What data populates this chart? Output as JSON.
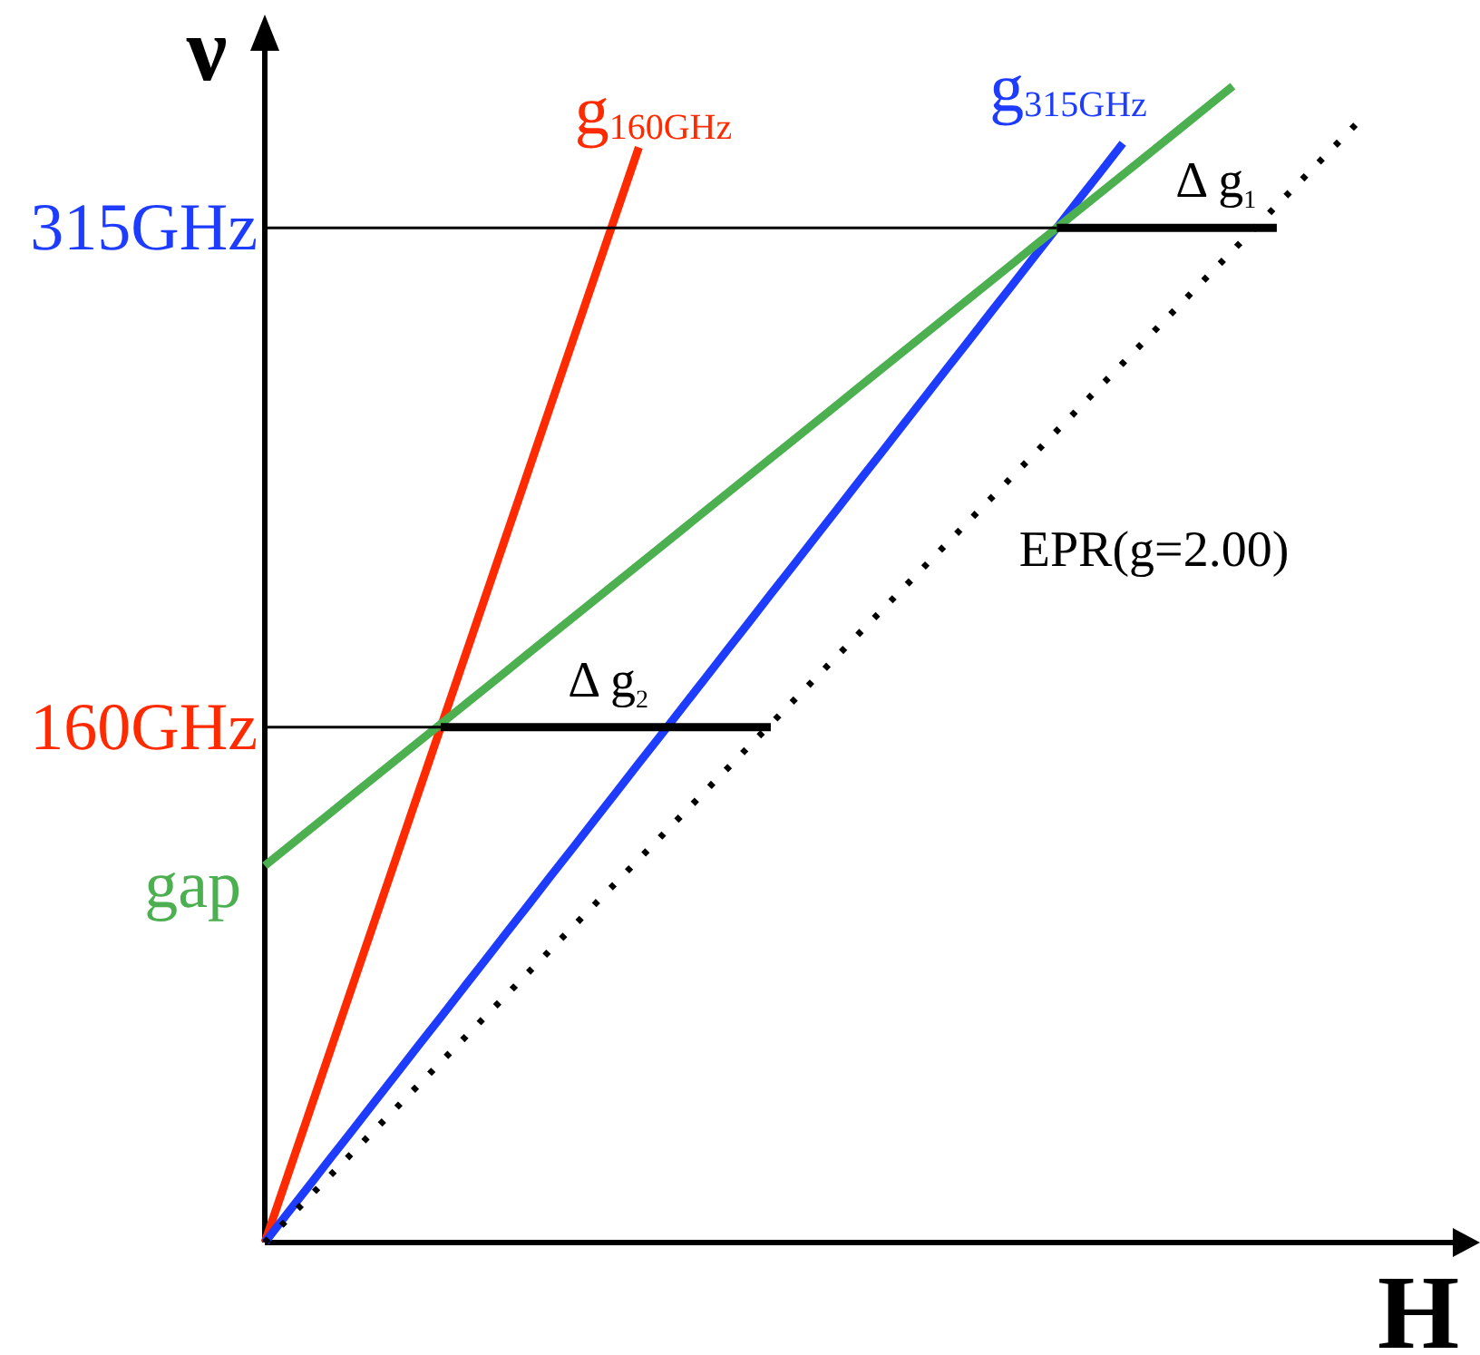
{
  "chart_data": {
    "type": "line",
    "xlabel": "H",
    "ylabel": "ν",
    "categories": [
      null,
      null,
      null,
      null,
      null,
      null,
      null,
      null,
      null,
      null,
      null,
      null,
      null,
      null,
      null,
      null,
      null,
      null,
      null,
      null,
      null,
      null,
      null,
      null,
      null,
      null,
      null,
      null,
      null,
      null,
      null,
      null,
      null,
      null,
      null,
      null,
      null,
      null,
      null,
      null,
      null,
      null,
      null,
      null,
      null,
      null,
      null,
      null,
      null,
      null,
      null,
      null,
      null,
      null,
      null
    ],
    "ylim": [
      0,
      370
    ],
    "yticks": [
      {
        "value": 160,
        "label": "160GHz"
      },
      {
        "value": 315,
        "label": "315GHz"
      }
    ],
    "tick_labels": "y",
    "series": [
      {
        "name": "g$_{160GHz}$",
        "color": "#ff2a00",
        "values": [
          0,
          20,
          40,
          60,
          80,
          100,
          120,
          140,
          160,
          180,
          200,
          220,
          240,
          260,
          280,
          300,
          320,
          340,
          null,
          null,
          null,
          null,
          null,
          null,
          null,
          null,
          null,
          null,
          null,
          null,
          null,
          null,
          null,
          null,
          null,
          null,
          null,
          null,
          null,
          null,
          null,
          null,
          null,
          null,
          null,
          null,
          null,
          null,
          null,
          null,
          null,
          null,
          null,
          null,
          null
        ]
      },
      {
        "name": "g$_{315GHz}$",
        "color": "#1e3cff",
        "values": [
          0,
          8.8,
          17.5,
          26.3,
          35,
          43.8,
          52.5,
          61.3,
          70,
          78.8,
          87.5,
          96.3,
          105,
          113.8,
          122.5,
          131.3,
          140,
          148.8,
          157.5,
          166.3,
          175,
          183.8,
          192.5,
          201.3,
          210,
          218.8,
          227.5,
          236.3,
          245,
          253.8,
          262.5,
          271.3,
          280,
          288.8,
          297.5,
          306.3,
          315,
          323.8,
          332.5,
          341.3,
          null,
          null,
          null,
          null,
          null,
          null,
          null,
          null,
          null,
          null,
          null,
          null,
          null,
          null,
          null
        ]
      },
      {
        "name": "gap",
        "color": "#4caf50",
        "values": [
          117,
          122.5,
          128,
          133.5,
          139,
          144.5,
          150,
          155.5,
          161,
          166.5,
          172,
          177.5,
          183,
          188.5,
          194,
          199.5,
          205,
          210.5,
          216,
          221.5,
          227,
          232.5,
          238,
          243.5,
          249,
          254.5,
          260,
          265.5,
          271,
          276.5,
          282,
          287.5,
          293,
          298.5,
          304,
          309.5,
          315,
          320.5,
          326,
          331.5,
          337,
          342.5,
          348,
          353.5,
          359,
          null,
          null,
          null,
          null,
          null,
          null,
          null,
          null,
          null,
          null
        ]
      },
      {
        "name": "EPR(g=2.00)",
        "color": "#000000",
        "line_style": "dotted",
        "values": [
          0,
          7,
          14,
          21,
          28,
          35,
          42,
          49,
          56,
          63,
          70,
          77,
          84,
          91,
          98,
          105,
          112,
          119,
          126,
          133,
          140,
          147,
          154,
          161,
          168,
          175,
          182,
          189,
          196,
          203,
          210,
          217,
          224,
          231,
          238,
          245,
          252,
          259,
          266,
          273,
          280,
          287,
          294,
          301,
          308,
          315,
          322,
          329,
          336,
          343,
          350,
          null,
          null,
          null,
          null
        ]
      },
      {
        "name": "Δ g$_{1}$",
        "color": "#000000",
        "values": [
          null,
          null,
          null,
          null,
          null,
          null,
          null,
          null,
          null,
          null,
          null,
          null,
          null,
          null,
          null,
          null,
          null,
          null,
          null,
          null,
          null,
          null,
          null,
          null,
          null,
          null,
          null,
          null,
          null,
          null,
          null,
          null,
          null,
          null,
          null,
          null,
          315,
          315,
          315,
          315,
          315,
          315,
          315,
          315,
          315,
          315,
          315,
          null,
          null,
          null,
          null,
          null,
          null,
          null,
          null
        ]
      },
      {
        "name": "Δ g$_{2}$",
        "color": "#000000",
        "values": [
          null,
          null,
          null,
          null,
          null,
          null,
          null,
          null,
          160,
          160,
          160,
          160,
          160,
          160,
          160,
          160,
          160,
          160,
          160,
          160,
          160,
          160,
          160,
          160,
          null,
          null,
          null,
          null,
          null,
          null,
          null,
          null,
          null,
          null,
          null,
          null,
          null,
          null,
          null,
          null,
          null,
          null,
          null,
          null,
          null,
          null,
          null,
          null,
          null,
          null,
          null,
          null,
          null,
          null,
          null
        ]
      },
      {
        "color": "#000000",
        "values": [
          315,
          315,
          315,
          315,
          315,
          315,
          315,
          315,
          315,
          315,
          315,
          315,
          315,
          315,
          315,
          315,
          315,
          315,
          315,
          315,
          315,
          315,
          315,
          315,
          315,
          315,
          315,
          315,
          315,
          315,
          315,
          315,
          315,
          315,
          315,
          315,
          315,
          null,
          null,
          null,
          null,
          null,
          null,
          null,
          null,
          null,
          null,
          null,
          null,
          null,
          null,
          null,
          null,
          null,
          null
        ]
      },
      {
        "color": "#000000",
        "values": [
          160,
          160,
          160,
          160,
          160,
          160,
          160,
          160,
          160,
          null,
          null,
          null,
          null,
          null,
          null,
          null,
          null,
          null,
          null,
          null,
          null,
          null,
          null,
          null,
          null,
          null,
          null,
          null,
          null,
          null,
          null,
          null,
          null,
          null,
          null,
          null,
          null,
          null,
          null,
          null,
          null,
          null,
          null,
          null,
          null,
          null,
          null,
          null,
          null,
          null,
          null,
          null,
          null,
          null,
          null
        ]
      }
    ]
  }
}
